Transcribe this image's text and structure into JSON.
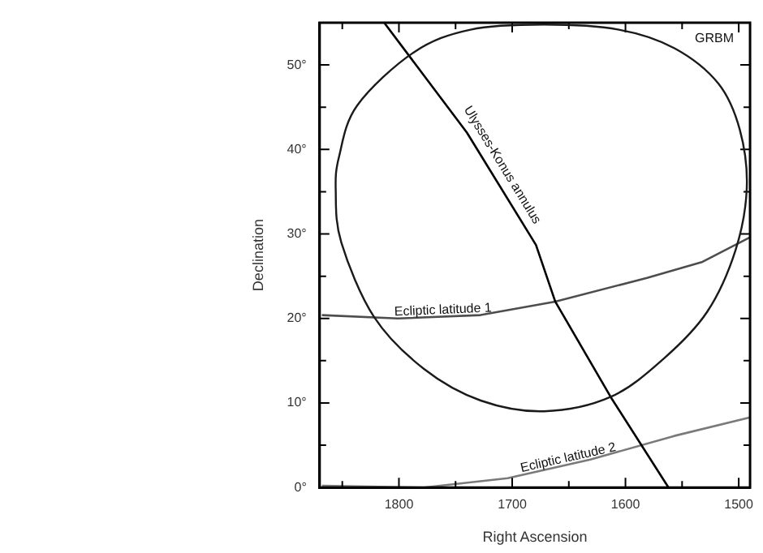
{
  "chart_data": {
    "type": "line",
    "xlabel": "Right Ascension",
    "ylabel": "Declination",
    "xlim": [
      1870,
      1490
    ],
    "ylim": [
      0,
      55
    ],
    "xticks": [
      {
        "value": 1850,
        "label": null
      },
      1800,
      {
        "value": 1750,
        "label": null
      },
      1700,
      {
        "value": 1650,
        "label": null
      },
      1600,
      {
        "value": 1550,
        "label": null
      },
      1500
    ],
    "yticks": [
      {
        "value": 0,
        "label": "0°"
      },
      {
        "value": 5,
        "label": null
      },
      {
        "value": 10,
        "label": "10°"
      },
      {
        "value": 15,
        "label": null
      },
      {
        "value": 20,
        "label": "20°"
      },
      {
        "value": 25,
        "label": null
      },
      {
        "value": 30,
        "label": "30°"
      },
      {
        "value": 35,
        "label": null
      },
      {
        "value": 40,
        "label": "40°"
      },
      {
        "value": 45,
        "label": null
      },
      {
        "value": 50,
        "label": "50°"
      }
    ],
    "grid": false,
    "legend": false,
    "marker": "none",
    "line_style": "solid",
    "series": [
      {
        "name": "Ulysses-Konus annulus",
        "color": "#000000",
        "x": [
          1813,
          1740,
          1679,
          1662,
          1613,
          1562
        ],
        "values": [
          55,
          42,
          28.7,
          22,
          10.7,
          0
        ]
      },
      {
        "name": "Ecliptic latitude 1",
        "color": "#4d4d4d",
        "x": [
          1868,
          1801,
          1728,
          1662,
          1581,
          1532,
          1490
        ],
        "values": [
          20.4,
          20,
          20.4,
          22,
          24.8,
          26.7,
          29.6
        ]
      },
      {
        "name": "Ecliptic latitude 2",
        "color": "#7a7a7a",
        "x": [
          1868,
          1778,
          1704,
          1631,
          1557,
          1490
        ],
        "values": [
          0.2,
          0,
          1.1,
          3.3,
          6.1,
          8.3
        ]
      }
    ],
    "annotations": [
      "GRBM"
    ]
  }
}
